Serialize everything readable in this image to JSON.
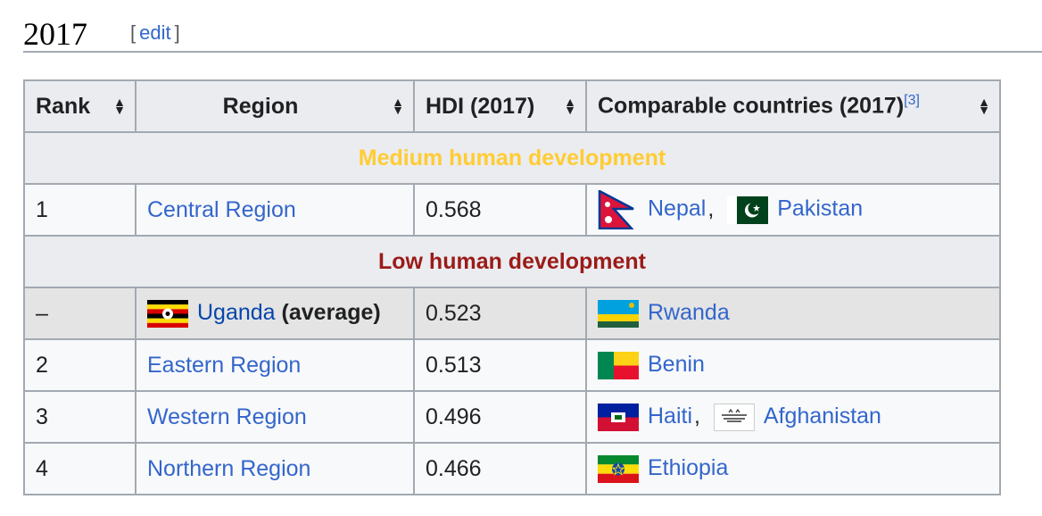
{
  "heading": {
    "title": "2017",
    "edit_open": "[",
    "edit_label": "edit",
    "edit_close": "]"
  },
  "table": {
    "columns": {
      "rank": "Rank",
      "region": "Region",
      "hdi": "HDI (2017)",
      "comparable": "Comparable countries (2017)",
      "comparable_ref": "[3]"
    },
    "groups": {
      "medium": "Medium human development",
      "low": "Low human development"
    },
    "rows": [
      {
        "rank": "1",
        "region": "Central Region",
        "hdi": "0.568",
        "countries": [
          "Nepal",
          "Pakistan"
        ],
        "separator": ","
      },
      {
        "rank": "–",
        "region": "Uganda",
        "region_suffix": "(average)",
        "hdi": "0.523",
        "countries": [
          "Rwanda"
        ]
      },
      {
        "rank": "2",
        "region": "Eastern Region",
        "hdi": "0.513",
        "countries": [
          "Benin"
        ]
      },
      {
        "rank": "3",
        "region": "Western Region",
        "hdi": "0.496",
        "countries": [
          "Haiti",
          "Afghanistan"
        ],
        "separator": ","
      },
      {
        "rank": "4",
        "region": "Northern Region",
        "hdi": "0.466",
        "countries": [
          "Ethiopia"
        ]
      }
    ]
  },
  "colors": {
    "medium": "#ffcc33",
    "low": "#9b1b18",
    "link": "#3366cc",
    "border": "#a2a9b1",
    "header_bg": "#eaecf0"
  },
  "icons": {
    "sort": "sort-icon",
    "flags": [
      "flag-uganda-icon",
      "flag-nepal-icon",
      "flag-pakistan-icon",
      "flag-rwanda-icon",
      "flag-benin-icon",
      "flag-haiti-icon",
      "flag-afghanistan-icon",
      "flag-ethiopia-icon"
    ]
  }
}
